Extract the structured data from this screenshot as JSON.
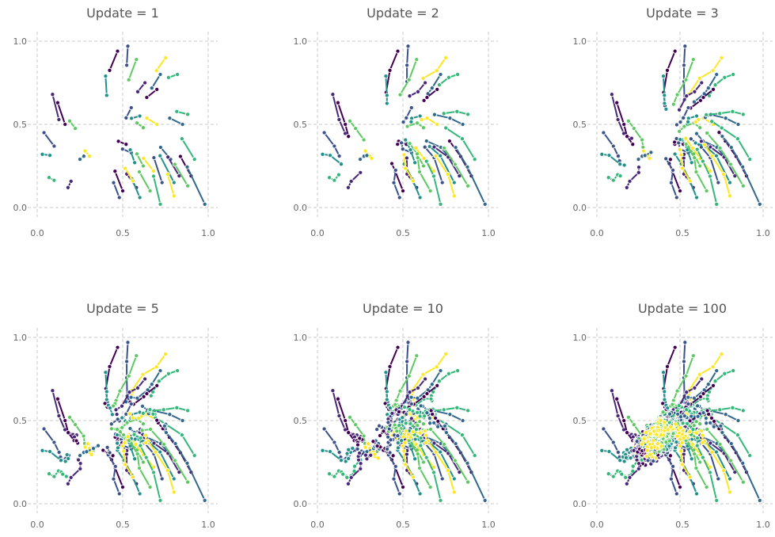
{
  "chart_data": [
    {
      "type": "line",
      "title": "Update = 1",
      "iterations": 1,
      "xlim": [
        0,
        1
      ],
      "ylim": [
        0,
        1
      ],
      "xticks": [
        "0.0",
        "0.5",
        "1.0"
      ],
      "yticks": [
        "0.0",
        "0.5",
        "1.0"
      ],
      "grid": true
    },
    {
      "type": "line",
      "title": "Update = 2",
      "iterations": 2,
      "xlim": [
        0,
        1
      ],
      "ylim": [
        0,
        1
      ],
      "xticks": [
        "0.0",
        "0.5",
        "1.0"
      ],
      "yticks": [
        "0.0",
        "0.5",
        "1.0"
      ],
      "grid": true
    },
    {
      "type": "line",
      "title": "Update = 3",
      "iterations": 3,
      "xlim": [
        0,
        1
      ],
      "ylim": [
        0,
        1
      ],
      "xticks": [
        "0.0",
        "0.5",
        "1.0"
      ],
      "yticks": [
        "0.0",
        "0.5",
        "1.0"
      ],
      "grid": true
    },
    {
      "type": "line",
      "title": "Update = 5",
      "iterations": 5,
      "xlim": [
        0,
        1
      ],
      "ylim": [
        0,
        1
      ],
      "xticks": [
        "0.0",
        "0.5",
        "1.0"
      ],
      "yticks": [
        "0.0",
        "0.5",
        "1.0"
      ],
      "grid": true
    },
    {
      "type": "line",
      "title": "Update = 10",
      "iterations": 10,
      "xlim": [
        0,
        1
      ],
      "ylim": [
        0,
        1
      ],
      "xticks": [
        "0.0",
        "0.5",
        "1.0"
      ],
      "yticks": [
        "0.0",
        "0.5",
        "1.0"
      ],
      "grid": true
    },
    {
      "type": "line",
      "title": "Update = 100",
      "iterations": 100,
      "xlim": [
        0,
        1
      ],
      "ylim": [
        0,
        1
      ],
      "xticks": [
        "0.0",
        "0.5",
        "1.0"
      ],
      "yticks": [
        "0.0",
        "0.5",
        "1.0"
      ],
      "grid": true
    }
  ],
  "series_start_points": [
    [
      0.47,
      0.94
    ],
    [
      0.53,
      0.97
    ],
    [
      0.4,
      0.79
    ],
    [
      0.58,
      0.89
    ],
    [
      0.75,
      0.9
    ],
    [
      0.72,
      0.8
    ],
    [
      0.82,
      0.8
    ],
    [
      0.63,
      0.75
    ],
    [
      0.7,
      0.71
    ],
    [
      0.55,
      0.6
    ],
    [
      0.6,
      0.55
    ],
    [
      0.62,
      0.48
    ],
    [
      0.7,
      0.5
    ],
    [
      0.85,
      0.5
    ],
    [
      0.88,
      0.56
    ],
    [
      0.09,
      0.68
    ],
    [
      0.12,
      0.63
    ],
    [
      0.04,
      0.45
    ],
    [
      0.03,
      0.32
    ],
    [
      0.19,
      0.52
    ],
    [
      0.28,
      0.34
    ],
    [
      0.25,
      0.29
    ],
    [
      0.07,
      0.18
    ],
    [
      0.18,
      0.12
    ],
    [
      0.52,
      0.38
    ],
    [
      0.55,
      0.33
    ],
    [
      0.57,
      0.27
    ],
    [
      0.62,
      0.25
    ],
    [
      0.68,
      0.22
    ],
    [
      0.78,
      0.29
    ],
    [
      0.92,
      0.29
    ],
    [
      0.83,
      0.19
    ],
    [
      0.9,
      0.19
    ],
    [
      0.73,
      0.15
    ],
    [
      0.8,
      0.15
    ],
    [
      0.88,
      0.13
    ],
    [
      0.8,
      0.07
    ],
    [
      0.98,
      0.02
    ],
    [
      0.72,
      0.02
    ],
    [
      0.58,
      0.12
    ],
    [
      0.5,
      0.1
    ],
    [
      0.48,
      0.06
    ],
    [
      0.6,
      0.06
    ],
    [
      0.66,
      0.1
    ],
    [
      0.56,
      0.16
    ]
  ],
  "colors": {
    "series_palette": [
      "#440154",
      "#3b528b",
      "#21918c",
      "#5ec962",
      "#fde725",
      "#31688e",
      "#35b779",
      "#482878"
    ],
    "grid": "#c8c8c8",
    "text": "#555555",
    "marker_edge": "#ffffff"
  }
}
